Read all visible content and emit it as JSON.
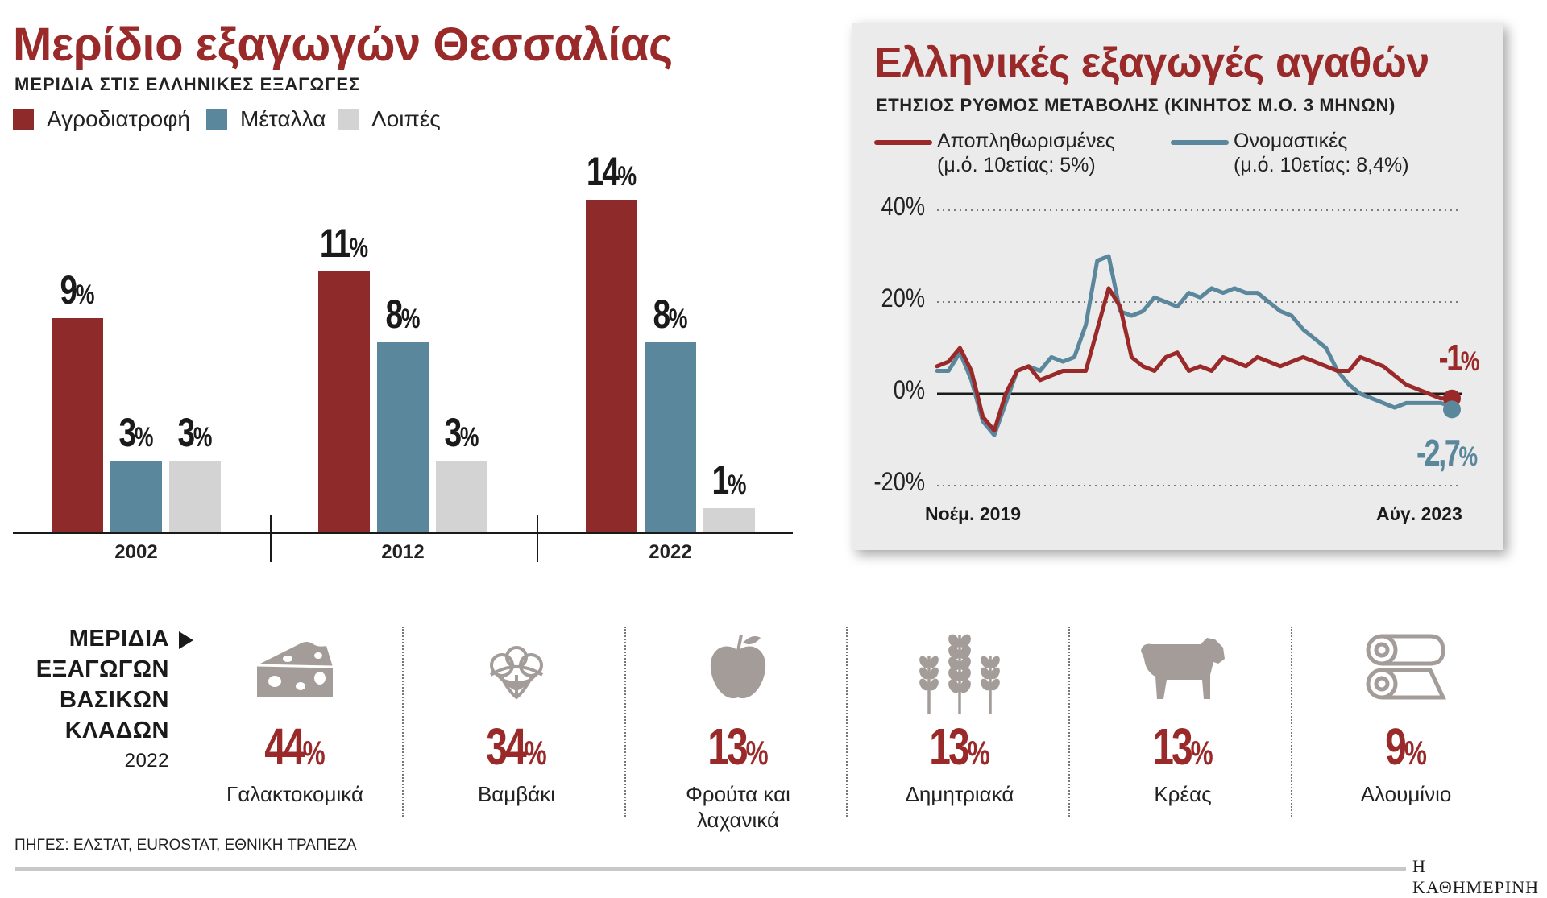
{
  "left": {
    "title": "Μερίδιο εξαγωγών Θεσσαλίας",
    "subtitle": "ΜΕΡΙΔΙΑ ΣΤΙΣ ΕΛΛΗΝΙΚΕΣ ΕΞΑΓΩΓΕΣ",
    "legend": [
      {
        "label": "Αγροδιατροφή",
        "color": "#8e2a2a"
      },
      {
        "label": "Μέταλλα",
        "color": "#5b879d"
      },
      {
        "label": "Λοιπές",
        "color": "#d3d3d3"
      }
    ]
  },
  "right": {
    "title": "Ελληνικές εξαγωγές αγαθών",
    "subtitle": "ΕΤΗΣΙΟΣ ΡΥΘΜΟΣ ΜΕΤΑΒΟΛΗΣ (ΚΙΝΗΤΟΣ Μ.Ο. 3 ΜΗΝΩΝ)",
    "legend": [
      {
        "label": "Αποπληθωρισμένες",
        "sub": "(μ.ό. 10ετίας: 5%)",
        "color": "#9a2a2a"
      },
      {
        "label": "Ονομαστικές",
        "sub": "(μ.ό. 10ετίας: 8,4%)",
        "color": "#5b879d"
      }
    ],
    "y_ticks": [
      "40%",
      "20%",
      "0%",
      "-20%"
    ],
    "x_start": "Νοέμ. 2019",
    "x_end": "Αύγ. 2023",
    "end_label_real": "-1",
    "end_label_nominal": "-2,7"
  },
  "chart_data": [
    {
      "type": "bar",
      "title": "Μερίδιο εξαγωγών Θεσσαλίας",
      "subtitle": "ΜΕΡΙΔΙΑ ΣΤΙΣ ΕΛΛΗΝΙΚΕΣ ΕΞΑΓΩΓΕΣ",
      "categories": [
        "2002",
        "2012",
        "2022"
      ],
      "series": [
        {
          "name": "Αγροδιατροφή",
          "values": [
            9,
            11,
            14
          ],
          "color": "#8e2a2a"
        },
        {
          "name": "Μέταλλα",
          "values": [
            3,
            8,
            8
          ],
          "color": "#5b879d"
        },
        {
          "name": "Λοιπές",
          "values": [
            3,
            3,
            1
          ],
          "color": "#d3d3d3"
        }
      ],
      "ylim": [
        0,
        14
      ],
      "legend": "top-left"
    },
    {
      "type": "line",
      "title": "Ελληνικές εξαγωγές αγαθών",
      "subtitle": "ΕΤΗΣΙΟΣ ΡΥΘΜΟΣ ΜΕΤΑΒΟΛΗΣ (ΚΙΝΗΤΟΣ Μ.Ο. 3 ΜΗΝΩΝ)",
      "x": [
        "2019-11",
        "2019-12",
        "2020-01",
        "2020-02",
        "2020-03",
        "2020-04",
        "2020-05",
        "2020-06",
        "2020-07",
        "2020-08",
        "2020-09",
        "2020-10",
        "2020-11",
        "2020-12",
        "2021-01",
        "2021-02",
        "2021-03",
        "2021-04",
        "2021-05",
        "2021-06",
        "2021-07",
        "2021-08",
        "2021-09",
        "2021-10",
        "2021-11",
        "2021-12",
        "2022-01",
        "2022-02",
        "2022-03",
        "2022-04",
        "2022-05",
        "2022-06",
        "2022-07",
        "2022-08",
        "2022-09",
        "2022-10",
        "2022-11",
        "2022-12",
        "2023-01",
        "2023-02",
        "2023-03",
        "2023-04",
        "2023-05",
        "2023-06",
        "2023-07",
        "2023-08"
      ],
      "series": [
        {
          "name": "Αποπληθωρισμένες",
          "color": "#9a2a2a",
          "values": [
            6,
            7,
            10,
            5,
            -5,
            -8,
            0,
            5,
            6,
            3,
            4,
            5,
            5,
            5,
            14,
            23,
            19,
            8,
            6,
            5,
            8,
            9,
            5,
            6,
            5,
            8,
            7,
            6,
            8,
            7,
            6,
            7,
            8,
            7,
            6,
            5,
            5,
            8,
            7,
            6,
            4,
            2,
            1,
            0,
            -1,
            -1
          ]
        },
        {
          "name": "Ονομαστικές",
          "color": "#5b879d",
          "values": [
            5,
            5,
            9,
            3,
            -6,
            -9,
            -2,
            5,
            6,
            5,
            8,
            7,
            8,
            15,
            29,
            30,
            18,
            17,
            18,
            21,
            20,
            19,
            22,
            21,
            23,
            22,
            23,
            22,
            22,
            20,
            18,
            17,
            14,
            12,
            10,
            5,
            2,
            0,
            -1,
            -2,
            -3,
            -2,
            -2,
            -2,
            -2,
            -2.7
          ]
        }
      ],
      "ylim": [
        -20,
        40
      ],
      "yticks": [
        40,
        20,
        0,
        -20
      ],
      "grid": true,
      "annotations": [
        "-1%",
        "-2,7%"
      ],
      "legend": "top"
    }
  ],
  "sectors": {
    "title_lines": [
      "ΜΕΡΙΔΙΑ",
      "ΕΞΑΓΩΓΩΝ",
      "ΒΑΣΙΚΩΝ",
      "ΚΛΑΔΩΝ"
    ],
    "year": "2022",
    "items": [
      {
        "icon": "cheese-icon",
        "value": "44",
        "name": "Γαλακτοκομικά"
      },
      {
        "icon": "cotton-icon",
        "value": "34",
        "name": "Βαμβάκι"
      },
      {
        "icon": "apple-icon",
        "value": "13",
        "name": "Φρούτα και λαχανικά"
      },
      {
        "icon": "wheat-icon",
        "value": "13",
        "name": "Δημητριακά"
      },
      {
        "icon": "cow-icon",
        "value": "13",
        "name": "Κρέας"
      },
      {
        "icon": "aluminium-rolls-icon",
        "value": "9",
        "name": "Αλουμίνιο"
      }
    ]
  },
  "footer": {
    "sources": "ΠΗΓΕΣ: ΕΛΣΤΑΤ, EUROSTAT, ΕΘΝΙΚΗ ΤΡΑΠΕΖΑ",
    "brand": "Η ΚΑΘΗΜΕΡΙΝΗ"
  },
  "pct_sign": "%"
}
